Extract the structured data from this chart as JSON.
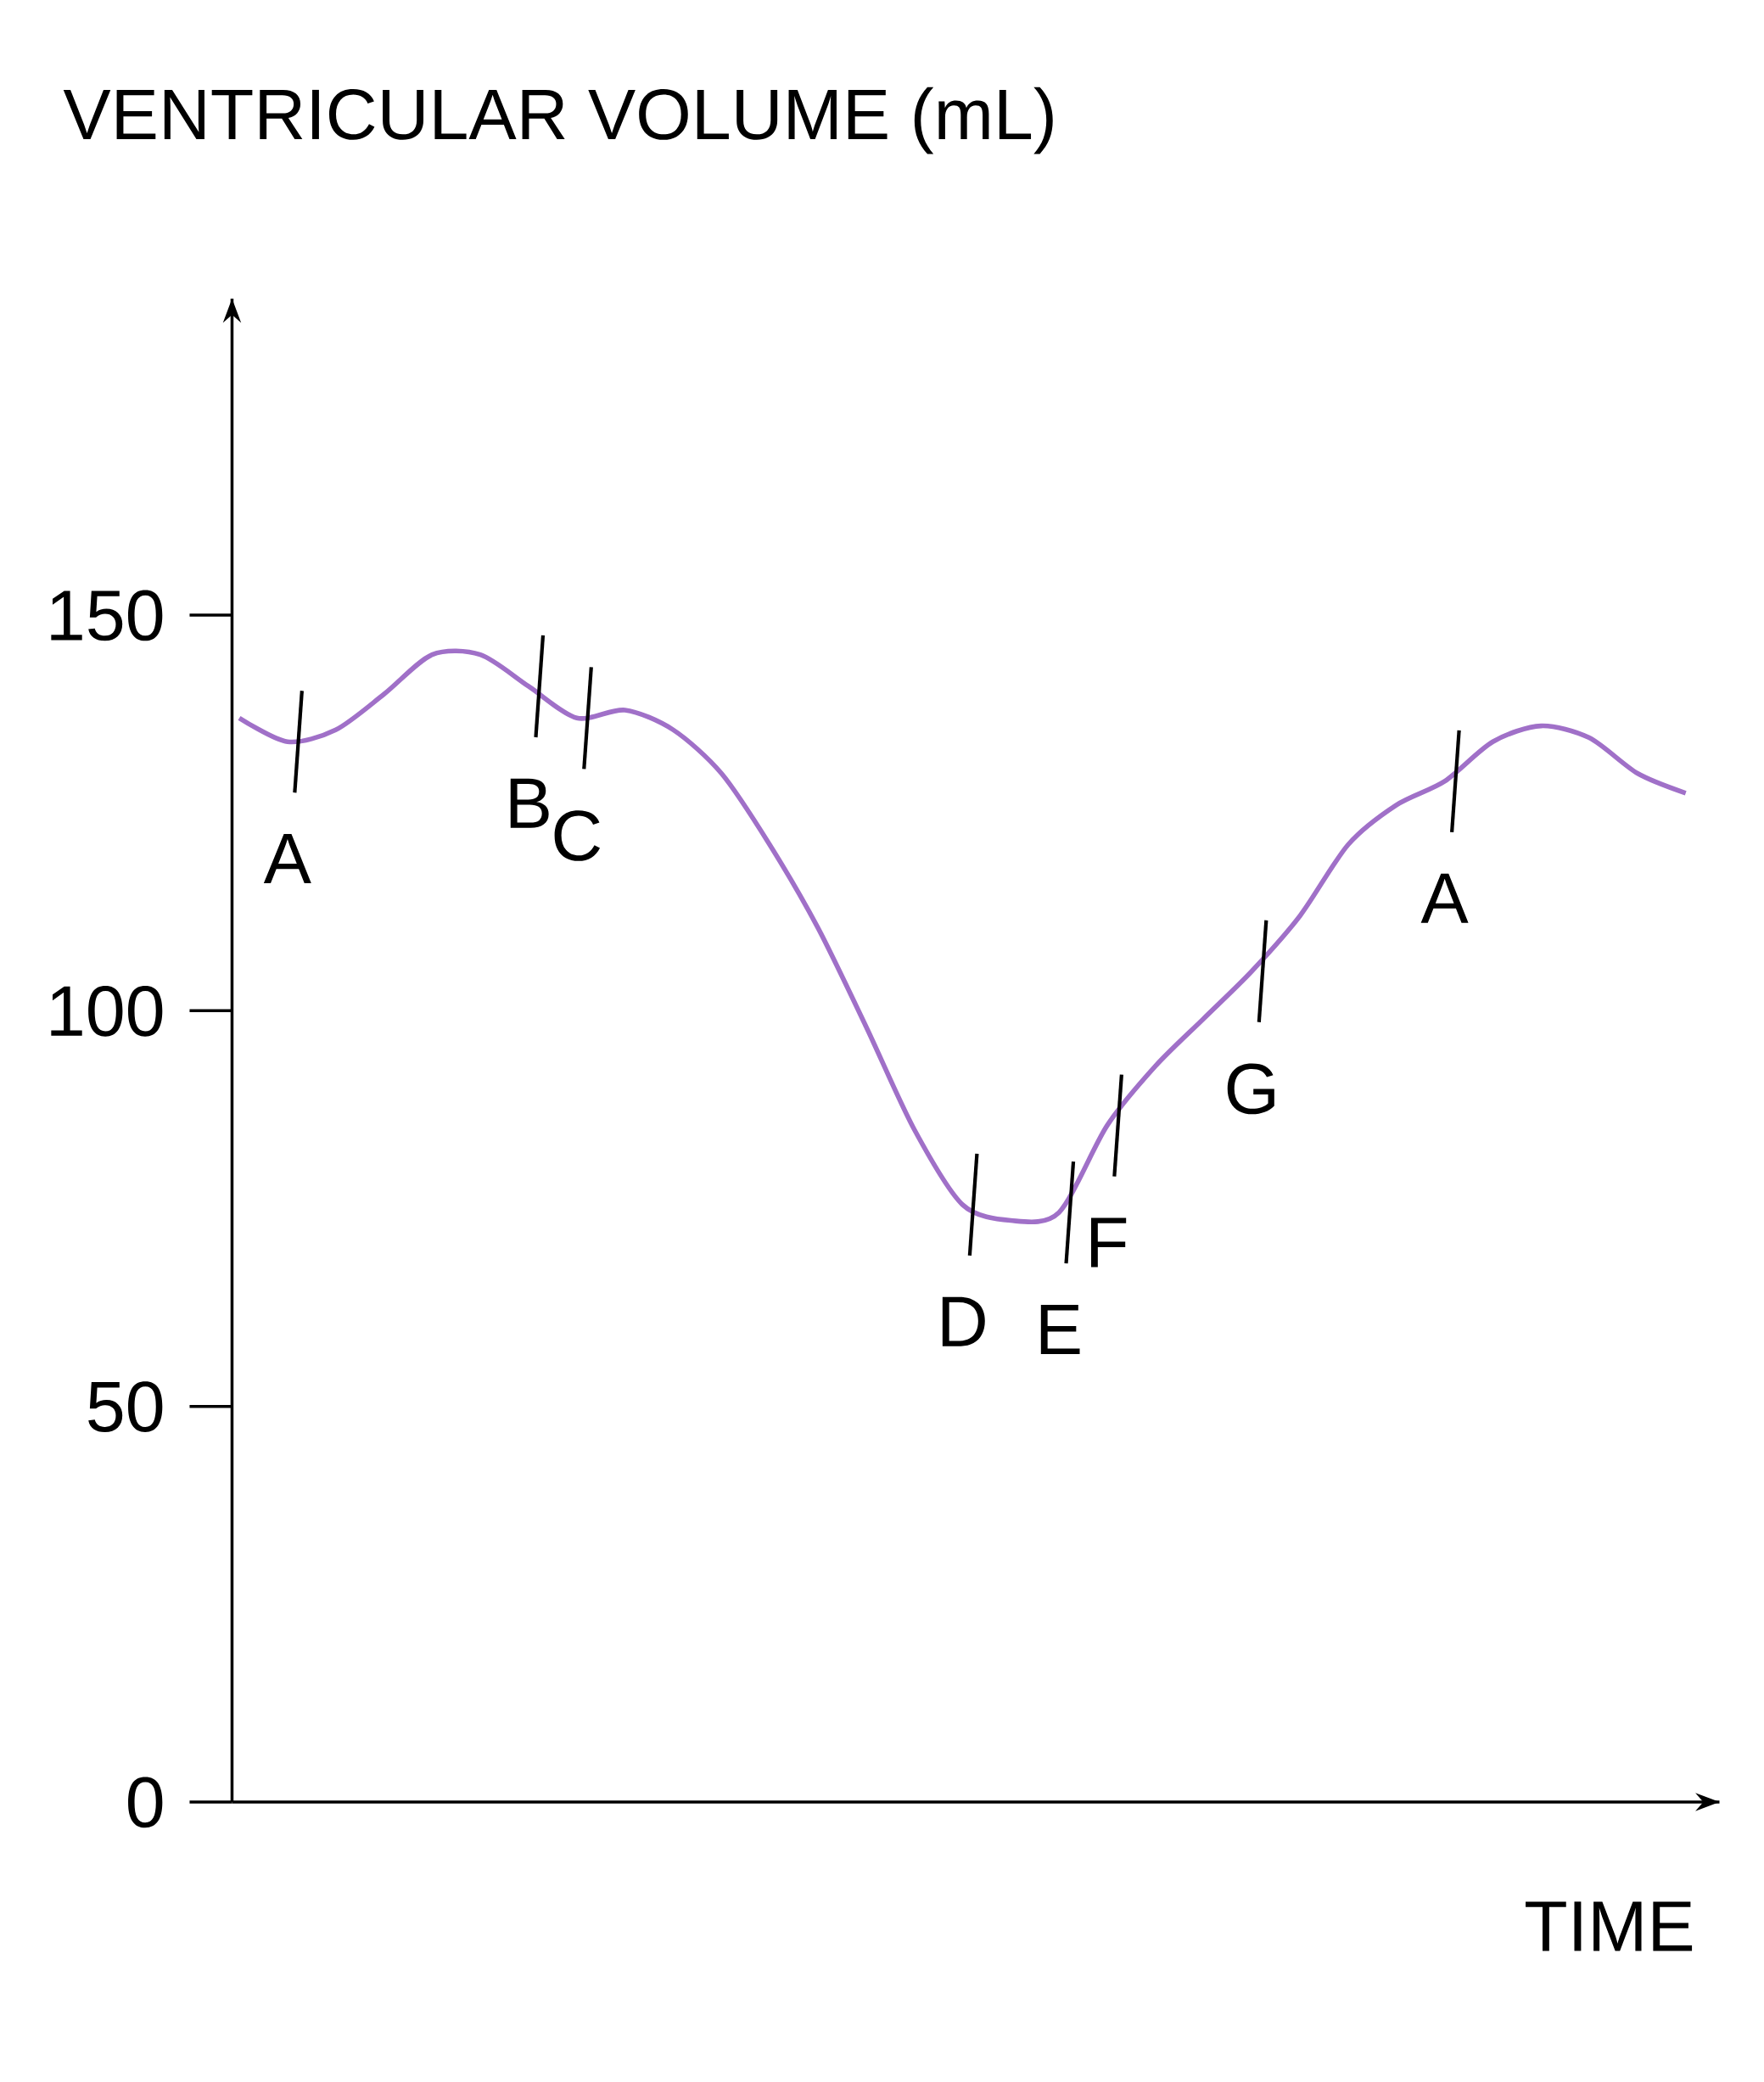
{
  "chart_data": {
    "type": "line",
    "ylabel": "VENTRICULAR VOLUME (mL)",
    "xlabel": "TIME",
    "categories": [
      null,
      null,
      null,
      null,
      null,
      null,
      null,
      null,
      null,
      null,
      null,
      null,
      null,
      null,
      null,
      null,
      null,
      null,
      null,
      null,
      null,
      null,
      null,
      null,
      null,
      null,
      null,
      null,
      null,
      null,
      null
    ],
    "series": [
      {
        "color": "#a070c8",
        "values": [
          137,
          134,
          135.5,
          140,
          145,
          145,
          141,
          137,
          138,
          135.5,
          130,
          121,
          110.5,
          98,
          85,
          75.5,
          73.5,
          74.5,
          85.5,
          93,
          99,
          105,
          112,
          121,
          126,
          129,
          134,
          136,
          134.5,
          130,
          127.5
        ],
        "value_labels": [
          null,
          "A",
          null,
          null,
          null,
          null,
          "B",
          "C",
          null,
          null,
          null,
          null,
          null,
          null,
          null,
          "D",
          null,
          "E",
          "F",
          null,
          null,
          "G",
          null,
          null,
          null,
          "A",
          null,
          null,
          null,
          null,
          null
        ]
      }
    ],
    "ylim": [
      0,
      190
    ],
    "yticks": [
      0,
      50,
      100,
      150
    ],
    "grid": false
  }
}
